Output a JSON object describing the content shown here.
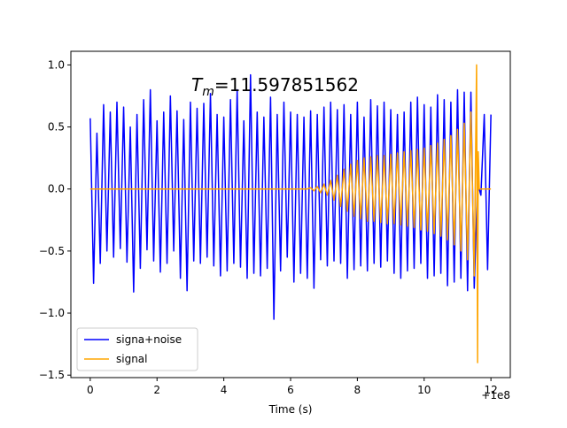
{
  "chart_data": {
    "type": "line",
    "annotation_symbol": "T",
    "annotation_subscript": "m",
    "annotation_text": "=11.597851562",
    "xlabel": "Time (s)",
    "x_offset_label": "+1e8",
    "xlim": [
      -0.58,
      12.58
    ],
    "ylim": [
      -1.52,
      1.11
    ],
    "xticks": [
      0,
      2,
      4,
      6,
      8,
      10,
      12
    ],
    "yticks": [
      {
        "value": -1.5,
        "label": "−1.5"
      },
      {
        "value": -1.0,
        "label": "−1.0"
      },
      {
        "value": -0.5,
        "label": "−0.5"
      },
      {
        "value": 0,
        "label": "0.0"
      },
      {
        "value": 0.5,
        "label": "0.5"
      },
      {
        "value": 1.0,
        "label": "1.0"
      }
    ],
    "legend": "lower left",
    "grid": false,
    "series": [
      {
        "name": "signa+noise",
        "color": "#0000ff",
        "x": [
          0,
          0.1,
          0.2,
          0.3,
          0.4,
          0.5,
          0.6,
          0.7,
          0.8,
          0.9,
          1,
          1.1,
          1.2,
          1.3,
          1.4,
          1.5,
          1.6,
          1.7,
          1.8,
          1.9,
          2,
          2.1,
          2.2,
          2.3,
          2.4,
          2.5,
          2.6,
          2.7,
          2.8,
          2.9,
          3,
          3.1,
          3.2,
          3.3,
          3.4,
          3.5,
          3.6,
          3.7,
          3.8,
          3.9,
          4,
          4.1,
          4.2,
          4.3,
          4.4,
          4.5,
          4.6,
          4.7,
          4.8,
          4.9,
          5,
          5.1,
          5.2,
          5.3,
          5.4,
          5.5,
          5.6,
          5.7,
          5.8,
          5.9,
          6,
          6.1,
          6.2,
          6.3,
          6.4,
          6.5,
          6.6,
          6.7,
          6.8,
          6.9,
          7,
          7.1,
          7.2,
          7.3,
          7.4,
          7.5,
          7.6,
          7.7,
          7.8,
          7.9,
          8,
          8.1,
          8.2,
          8.3,
          8.4,
          8.5,
          8.6,
          8.7,
          8.8,
          8.9,
          9,
          9.1,
          9.2,
          9.3,
          9.4,
          9.5,
          9.6,
          9.7,
          9.8,
          9.9,
          10,
          10.1,
          10.2,
          10.3,
          10.4,
          10.5,
          10.6,
          10.7,
          10.8,
          10.9,
          11,
          11.1,
          11.2,
          11.3,
          11.4,
          11.5,
          11.6,
          11.7,
          11.8,
          11.9,
          12
        ],
        "values": [
          0.57,
          -0.76,
          0.45,
          -0.6,
          0.68,
          -0.5,
          0.62,
          -0.55,
          0.7,
          -0.48,
          0.66,
          -0.59,
          0.5,
          -0.83,
          0.6,
          -0.64,
          0.72,
          -0.49,
          0.8,
          -0.58,
          0.55,
          -0.67,
          0.62,
          -0.6,
          0.75,
          -0.5,
          0.63,
          -0.72,
          0.56,
          -0.82,
          0.7,
          -0.58,
          0.65,
          -0.6,
          0.69,
          -0.55,
          0.77,
          -0.62,
          0.6,
          -0.7,
          0.58,
          -0.66,
          0.72,
          -0.6,
          0.8,
          -0.63,
          0.55,
          -0.72,
          0.92,
          -0.68,
          0.62,
          -0.7,
          0.58,
          -0.64,
          0.74,
          -1.05,
          0.6,
          -0.66,
          0.7,
          -0.55,
          0.62,
          -0.75,
          0.6,
          -0.68,
          0.58,
          -0.72,
          0.63,
          -0.8,
          0.6,
          -0.57,
          0.66,
          -0.62,
          0.7,
          -0.58,
          0.64,
          -0.6,
          0.68,
          -0.72,
          0.6,
          -0.65,
          0.7,
          -0.62,
          0.58,
          -0.66,
          0.72,
          -0.6,
          0.67,
          -0.63,
          0.7,
          -0.58,
          0.64,
          -0.68,
          0.6,
          -0.72,
          0.62,
          -0.66,
          0.7,
          -0.64,
          0.74,
          -0.6,
          0.68,
          -0.72,
          0.66,
          -0.7,
          0.76,
          -0.68,
          0.72,
          -0.78,
          0.7,
          -0.75,
          0.8,
          -0.72,
          0.78,
          -0.82,
          0.78,
          -0.8,
          0.05,
          -0.05,
          0.6,
          -0.65,
          0.6
        ]
      },
      {
        "name": "signal",
        "color": "#ffa500",
        "x": [
          0,
          6.5,
          6.6,
          6.7,
          6.8,
          6.9,
          7,
          7.1,
          7.2,
          7.3,
          7.4,
          7.5,
          7.6,
          7.7,
          7.8,
          7.9,
          8,
          8.1,
          8.2,
          8.3,
          8.4,
          8.5,
          8.6,
          8.7,
          8.8,
          8.9,
          9,
          9.1,
          9.2,
          9.3,
          9.4,
          9.5,
          9.6,
          9.7,
          9.8,
          9.9,
          10,
          10.1,
          10.2,
          10.3,
          10.4,
          10.5,
          10.6,
          10.7,
          10.8,
          10.9,
          11,
          11.1,
          11.2,
          11.3,
          11.4,
          11.5,
          11.57,
          11.6,
          11.62,
          11.65,
          12
        ],
        "values": [
          0,
          0,
          0.01,
          -0.015,
          0.02,
          -0.03,
          0.04,
          -0.05,
          0.07,
          -0.09,
          0.11,
          -0.14,
          0.16,
          -0.18,
          0.2,
          -0.22,
          0.23,
          -0.24,
          0.25,
          -0.26,
          0.26,
          -0.26,
          0.27,
          -0.27,
          0.27,
          -0.28,
          0.28,
          -0.28,
          0.29,
          -0.29,
          0.3,
          -0.3,
          0.31,
          -0.31,
          0.32,
          -0.33,
          0.33,
          -0.34,
          0.35,
          -0.36,
          0.37,
          -0.38,
          0.4,
          -0.41,
          0.43,
          -0.45,
          0.48,
          -0.5,
          0.53,
          -0.57,
          0.62,
          -0.7,
          1.0,
          -1.4,
          0.3,
          0,
          0
        ]
      }
    ]
  }
}
